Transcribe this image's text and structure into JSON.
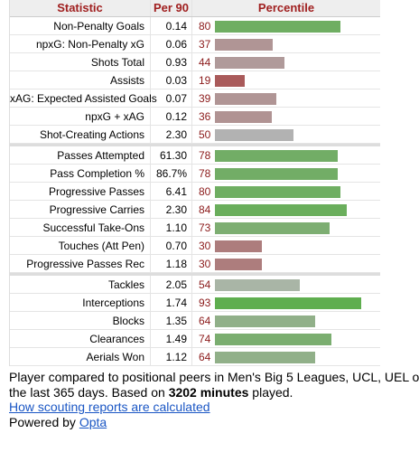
{
  "table": {
    "headers": [
      "Statistic",
      "Per 90",
      "Percentile"
    ],
    "groups": [
      [
        {
          "stat": "Non-Penalty Goals",
          "per90": "0.14",
          "percentile": 80,
          "color": "#6fae62"
        },
        {
          "stat": "npxG: Non-Penalty xG",
          "per90": "0.06",
          "percentile": 37,
          "color": "#b09595"
        },
        {
          "stat": "Shots Total",
          "per90": "0.93",
          "percentile": 44,
          "color": "#b09a9a"
        },
        {
          "stat": "Assists",
          "per90": "0.03",
          "percentile": 19,
          "color": "#a95a5a"
        },
        {
          "stat": "xAG: Expected Assisted Goals",
          "per90": "0.07",
          "percentile": 39,
          "color": "#b09595"
        },
        {
          "stat": "npxG + xAG",
          "per90": "0.12",
          "percentile": 36,
          "color": "#b09393"
        },
        {
          "stat": "Shot-Creating Actions",
          "per90": "2.30",
          "percentile": 50,
          "color": "#b2b2b2"
        }
      ],
      [
        {
          "stat": "Passes Attempted",
          "per90": "61.30",
          "percentile": 78,
          "color": "#72ad66"
        },
        {
          "stat": "Pass Completion %",
          "per90": "86.7%",
          "percentile": 78,
          "color": "#72ad66"
        },
        {
          "stat": "Progressive Passes",
          "per90": "6.41",
          "percentile": 80,
          "color": "#6fae62"
        },
        {
          "stat": "Progressive Carries",
          "per90": "2.30",
          "percentile": 84,
          "color": "#6aae5c"
        },
        {
          "stat": "Successful Take-Ons",
          "per90": "1.10",
          "percentile": 73,
          "color": "#7dae72"
        },
        {
          "stat": "Touches (Att Pen)",
          "per90": "0.70",
          "percentile": 30,
          "color": "#ad7d7d"
        },
        {
          "stat": "Progressive Passes Rec",
          "per90": "1.18",
          "percentile": 30,
          "color": "#ad7d7d"
        }
      ],
      [
        {
          "stat": "Tackles",
          "per90": "2.05",
          "percentile": 54,
          "color": "#a9b5a6"
        },
        {
          "stat": "Interceptions",
          "per90": "1.74",
          "percentile": 93,
          "color": "#5fae4f"
        },
        {
          "stat": "Blocks",
          "per90": "1.35",
          "percentile": 64,
          "color": "#91b089"
        },
        {
          "stat": "Clearances",
          "per90": "1.49",
          "percentile": 74,
          "color": "#7bae70"
        },
        {
          "stat": "Aerials Won",
          "per90": "1.12",
          "percentile": 64,
          "color": "#91b089"
        }
      ]
    ]
  },
  "footer": {
    "line1": "Player compared to positional peers in Men's Big 5 Leagues, UCL, UEL o",
    "line2_start": "the last 365 days. Based on",
    "minutes": "3202 minutes",
    "line2_end": "played.",
    "link": "How scouting reports are calculated",
    "powered": "Powered by",
    "opta": "Opta"
  }
}
